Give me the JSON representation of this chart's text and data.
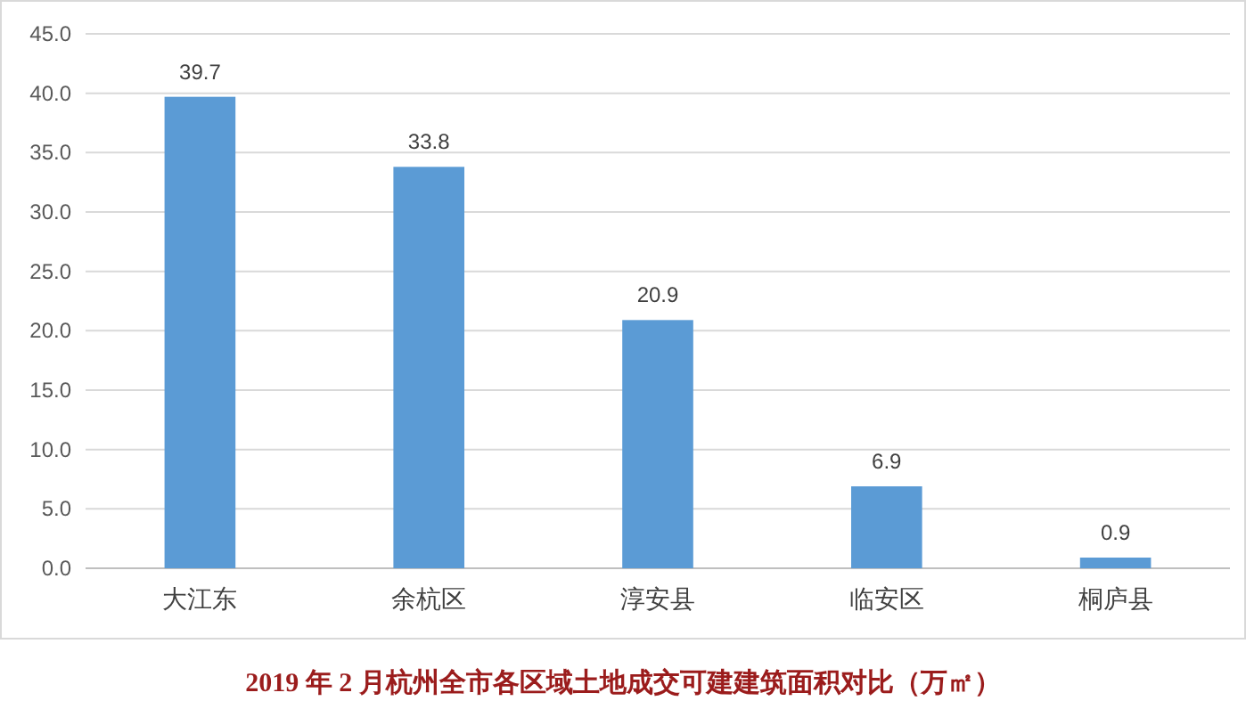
{
  "chart_data": {
    "type": "bar",
    "title": "2019 年 2 月杭州全市各区域土地成交可建建筑面积对比（万㎡）",
    "categories": [
      "大江东",
      "余杭区",
      "淳安县",
      "临安区",
      "桐庐县"
    ],
    "values": [
      39.7,
      33.8,
      20.9,
      6.9,
      0.9
    ],
    "color": "#5b9bd5",
    "ylim": [
      0,
      45
    ],
    "yticks": [
      {
        "value": 0,
        "label": "0.0"
      },
      {
        "value": 5,
        "label": "5.0"
      },
      {
        "value": 10,
        "label": "10.0"
      },
      {
        "value": 15,
        "label": "15.0"
      },
      {
        "value": 20,
        "label": "20.0"
      },
      {
        "value": 25,
        "label": "25.0"
      },
      {
        "value": 30,
        "label": "30.0"
      },
      {
        "value": 35,
        "label": "35.0"
      },
      {
        "value": 40,
        "label": "40.0"
      },
      {
        "value": 45,
        "label": "45.0"
      }
    ],
    "grid": "y",
    "data_labels": true
  }
}
